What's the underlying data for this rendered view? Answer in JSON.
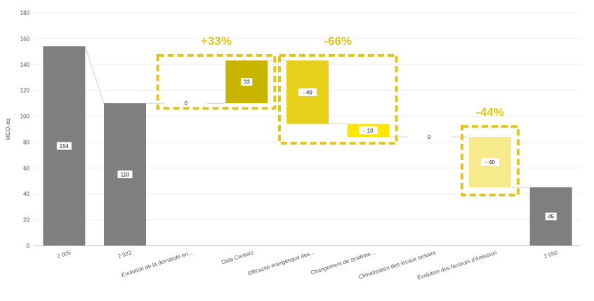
{
  "chart_data": {
    "type": "bar",
    "subtype": "waterfall",
    "ylabel": "ktCO₂eq",
    "ylim": [
      0,
      180
    ],
    "yticks": [
      0,
      20,
      40,
      60,
      80,
      100,
      120,
      140,
      160,
      180
    ],
    "grid": true,
    "categories": [
      "2 005",
      "2 022",
      "Evolution de la demande en...",
      "Data Centers",
      "Efficacité énergétique des...",
      "Changement de système...",
      "Climatisation des locaux tertiaire",
      "Évolution des facteurs d'émission",
      "2 050"
    ],
    "bars": [
      {
        "label": "2 005",
        "kind": "total",
        "start": 0,
        "end": 154,
        "value_label": "154",
        "color": "#7f7f7f"
      },
      {
        "label": "2 022",
        "kind": "total",
        "start": 0,
        "end": 110,
        "value_label": "110",
        "color": "#7f7f7f"
      },
      {
        "label": "Evolution de la demande en...",
        "kind": "delta",
        "start": 110,
        "end": 110,
        "value_label": "0",
        "color": "#c9b400"
      },
      {
        "label": "Data Centers",
        "kind": "delta",
        "start": 110,
        "end": 143,
        "value_label": "33",
        "color": "#c9b400"
      },
      {
        "label": "Efficacité énergétique des...",
        "kind": "delta",
        "start": 143,
        "end": 94,
        "value_label": "- 49",
        "color": "#e8cf1a"
      },
      {
        "label": "Changement de système...",
        "kind": "delta",
        "start": 94,
        "end": 84,
        "value_label": "- 10",
        "color": "#ffe600"
      },
      {
        "label": "Climatisation des locaux tertiaire",
        "kind": "delta",
        "start": 84,
        "end": 84,
        "value_label": "0",
        "color": "#e8cf1a"
      },
      {
        "label": "Évolution des facteurs d'émission",
        "kind": "delta",
        "start": 84,
        "end": 45,
        "value_label": "- 40",
        "color": "#f6ea8c"
      },
      {
        "label": "2 050",
        "kind": "total",
        "start": 0,
        "end": 45,
        "value_label": "45",
        "color": "#7f7f7f"
      }
    ],
    "annotations": [
      {
        "text": "+33%",
        "from_index": 2,
        "to_index": 3,
        "ymin": 106,
        "ymax": 147
      },
      {
        "text": "-66%",
        "from_index": 4,
        "to_index": 5,
        "ymin": 79,
        "ymax": 147
      },
      {
        "text": "-44%",
        "from_index": 7,
        "to_index": 7,
        "ymin": 39,
        "ymax": 92
      }
    ],
    "annotation_color": "#e0c51c"
  }
}
